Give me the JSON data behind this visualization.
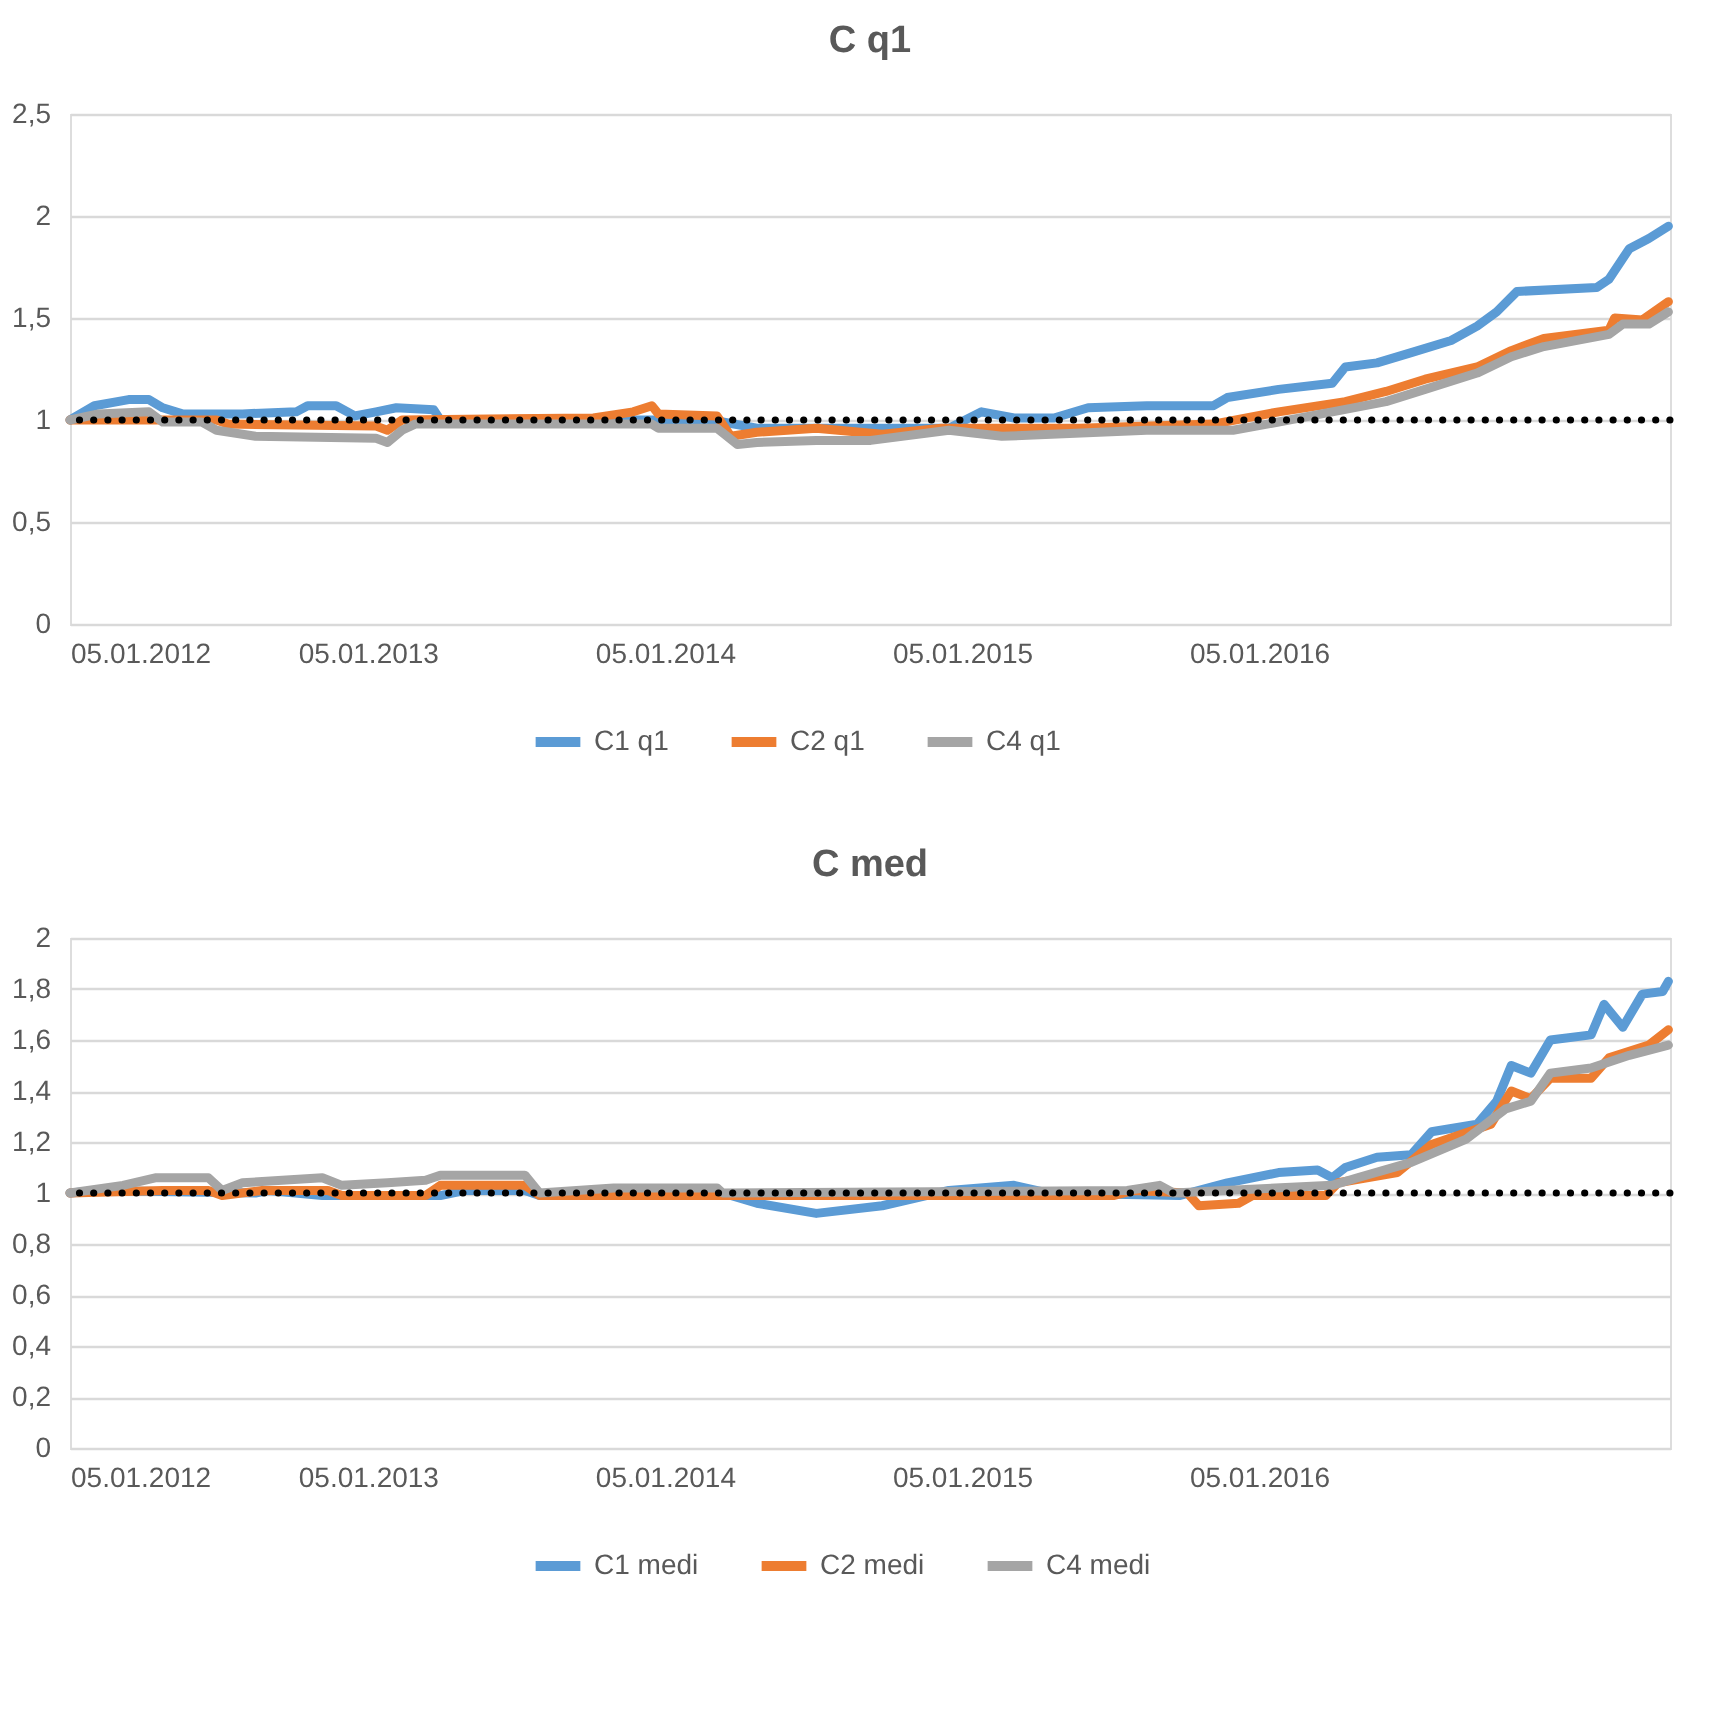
{
  "chart_data": [
    {
      "type": "line",
      "title": "C q1",
      "xlim": [
        "2012-01-05",
        "2017-05-24"
      ],
      "ylim": [
        0,
        2.5
      ],
      "xticks": [
        {
          "value": "2012-01-05",
          "label": "05.01.2012"
        },
        {
          "value": "2013-01-05",
          "label": "05.01.2013"
        },
        {
          "value": "2014-01-05",
          "label": "05.01.2014"
        },
        {
          "value": "2015-01-05",
          "label": "05.01.2015"
        },
        {
          "value": "2016-01-05",
          "label": "05.01.2016"
        }
      ],
      "yticks": [
        0,
        {
          "value": 0.5,
          "label": "0,5"
        },
        1,
        {
          "value": 1.5,
          "label": "1,5"
        },
        2,
        {
          "value": 2.5,
          "label": "2,5"
        }
      ],
      "grid": "y",
      "legend": "bottom",
      "line_style": "solid",
      "marker": "none",
      "ref_lines": [
        {
          "axis": "y",
          "value": 1,
          "label": null,
          "color": "#000000",
          "line_style": "dotted"
        }
      ],
      "series": [
        {
          "name": "C1 q1",
          "color": "#5b9bd5",
          "x": [
            "2012-01-05",
            "2012-02-04",
            "2012-03-17",
            "2012-04-11",
            "2012-04-28",
            "2012-05-22",
            "2012-08-04",
            "2012-10-09",
            "2012-10-23",
            "2012-11-27",
            "2012-12-20",
            "2013-01-15",
            "2013-02-09",
            "2013-03-27",
            "2013-04-04",
            "2013-12-28",
            "2014-03-17",
            "2014-04-28",
            "2014-07-10",
            "2014-12-20",
            "2015-01-29",
            "2015-03-10",
            "2015-04-28",
            "2015-06-09",
            "2015-08-20",
            "2015-11-10",
            "2015-11-27",
            "2016-01-29",
            "2016-04-04",
            "2016-04-20",
            "2016-05-29",
            "2016-07-10",
            "2016-08-28",
            "2016-09-29",
            "2016-10-23",
            "2016-11-17",
            "2017-02-23",
            "2017-03-10",
            "2017-04-04",
            "2017-04-28",
            "2017-05-22"
          ],
          "values": [
            1.0,
            1.07,
            1.1,
            1.1,
            1.06,
            1.03,
            1.03,
            1.04,
            1.07,
            1.07,
            1.02,
            1.04,
            1.06,
            1.05,
            1.0,
            1.0,
            0.99,
            0.96,
            0.96,
            0.96,
            1.04,
            1.01,
            1.01,
            1.06,
            1.07,
            1.07,
            1.11,
            1.15,
            1.18,
            1.26,
            1.28,
            1.33,
            1.39,
            1.46,
            1.53,
            1.63,
            1.65,
            1.69,
            1.84,
            1.89,
            1.95
          ]
        },
        {
          "name": "C2 q1",
          "color": "#ed7d31",
          "x": [
            "2012-01-05",
            "2012-07-03",
            "2012-07-17",
            "2013-01-15",
            "2013-01-29",
            "2013-02-16",
            "2013-10-09",
            "2013-11-27",
            "2013-12-20",
            "2013-12-28",
            "2014-03-10",
            "2014-03-27",
            "2014-04-28",
            "2014-07-10",
            "2014-09-29",
            "2014-12-11",
            "2015-05-29",
            "2015-11-10",
            "2016-01-29",
            "2016-04-20",
            "2016-06-09",
            "2016-07-27",
            "2016-09-29",
            "2016-11-10",
            "2016-12-20",
            "2017-03-10",
            "2017-03-17",
            "2017-04-20",
            "2017-05-22"
          ],
          "values": [
            1.0,
            1.0,
            0.98,
            0.97,
            0.95,
            1.0,
            1.01,
            1.04,
            1.07,
            1.03,
            1.02,
            0.92,
            0.94,
            0.96,
            0.93,
            0.96,
            0.96,
            0.98,
            1.04,
            1.09,
            1.14,
            1.2,
            1.26,
            1.34,
            1.4,
            1.44,
            1.5,
            1.49,
            1.58
          ]
        },
        {
          "name": "C4 q1",
          "color": "#a5a5a5",
          "x": [
            "2012-01-05",
            "2012-02-09",
            "2012-04-11",
            "2012-04-28",
            "2012-06-15",
            "2012-07-03",
            "2012-08-20",
            "2013-01-15",
            "2013-01-29",
            "2013-02-16",
            "2013-03-04",
            "2013-12-20",
            "2013-12-28",
            "2014-03-10",
            "2014-04-04",
            "2014-04-28",
            "2014-07-10",
            "2014-09-15",
            "2014-12-20",
            "2015-02-23",
            "2015-08-20",
            "2015-12-04",
            "2016-01-29",
            "2016-04-04",
            "2016-06-09",
            "2016-07-27",
            "2016-09-29",
            "2016-11-10",
            "2016-12-20",
            "2017-03-10",
            "2017-03-27",
            "2017-04-28",
            "2017-05-22"
          ],
          "values": [
            1.0,
            1.03,
            1.04,
            0.99,
            0.99,
            0.95,
            0.92,
            0.91,
            0.89,
            0.95,
            0.98,
            0.98,
            0.96,
            0.96,
            0.88,
            0.89,
            0.9,
            0.9,
            0.95,
            0.92,
            0.95,
            0.95,
            0.99,
            1.04,
            1.09,
            1.15,
            1.23,
            1.31,
            1.36,
            1.42,
            1.47,
            1.47,
            1.53
          ]
        }
      ]
    },
    {
      "type": "line",
      "title": "C med",
      "xlim": [
        "2012-01-05",
        "2017-05-24"
      ],
      "ylim": [
        0,
        2
      ],
      "xticks": [
        {
          "value": "2012-01-05",
          "label": "05.01.2012"
        },
        {
          "value": "2013-01-05",
          "label": "05.01.2013"
        },
        {
          "value": "2014-01-05",
          "label": "05.01.2014"
        },
        {
          "value": "2015-01-05",
          "label": "05.01.2015"
        },
        {
          "value": "2016-01-05",
          "label": "05.01.2016"
        }
      ],
      "yticks": [
        0,
        {
          "value": 0.2,
          "label": "0,2"
        },
        {
          "value": 0.4,
          "label": "0,4"
        },
        {
          "value": 0.6,
          "label": "0,6"
        },
        {
          "value": 0.8,
          "label": "0,8"
        },
        1,
        {
          "value": 1.2,
          "label": "1,2"
        },
        {
          "value": 1.4,
          "label": "1,4"
        },
        {
          "value": 1.6,
          "label": "1,6"
        },
        {
          "value": 1.8,
          "label": "1,8"
        },
        2
      ],
      "grid": "y",
      "legend": "bottom",
      "line_style": "solid",
      "marker": "none",
      "ref_lines": [
        {
          "axis": "y",
          "value": 1,
          "label": null,
          "color": "#000000",
          "line_style": "dotted"
        }
      ],
      "series": [
        {
          "name": "C1 medi",
          "color": "#5b9bd5",
          "x": [
            "2012-01-05",
            "2012-02-09",
            "2012-08-20",
            "2012-09-05",
            "2012-11-10",
            "2013-04-04",
            "2013-05-05",
            "2013-07-17",
            "2013-08-04",
            "2014-03-10",
            "2014-03-27",
            "2014-04-28",
            "2014-07-10",
            "2014-09-29",
            "2014-12-20",
            "2015-03-10",
            "2015-04-20",
            "2015-09-29",
            "2015-11-27",
            "2016-01-29",
            "2016-03-17",
            "2016-04-04",
            "2016-04-20",
            "2016-05-29",
            "2016-07-10",
            "2016-08-04",
            "2016-09-29",
            "2016-10-23",
            "2016-11-10",
            "2016-12-04",
            "2016-12-28",
            "2017-02-16",
            "2017-03-04",
            "2017-03-27",
            "2017-04-20",
            "2017-05-15",
            "2017-05-22"
          ],
          "values": [
            1.0,
            1.01,
            1.0,
            1.01,
            0.99,
            0.99,
            1.01,
            1.01,
            0.99,
            1.0,
            0.99,
            0.96,
            0.92,
            0.95,
            1.01,
            1.03,
            1.0,
            0.99,
            1.04,
            1.08,
            1.09,
            1.06,
            1.1,
            1.14,
            1.15,
            1.24,
            1.27,
            1.36,
            1.5,
            1.47,
            1.6,
            1.62,
            1.74,
            1.65,
            1.78,
            1.79,
            1.83
          ]
        },
        {
          "name": "C2 medi",
          "color": "#ed7d31",
          "x": [
            "2012-01-05",
            "2012-04-28",
            "2012-06-23",
            "2012-07-10",
            "2012-08-28",
            "2012-11-17",
            "2012-12-04",
            "2013-03-17",
            "2013-04-04",
            "2013-07-17",
            "2013-08-04",
            "2015-07-10",
            "2015-08-04",
            "2015-10-09",
            "2015-10-23",
            "2015-12-11",
            "2015-12-28",
            "2016-03-27",
            "2016-04-11",
            "2016-06-23",
            "2016-08-04",
            "2016-10-16",
            "2016-11-10",
            "2016-12-04",
            "2016-12-28",
            "2017-02-16",
            "2017-03-10",
            "2017-04-28",
            "2017-05-22"
          ],
          "values": [
            1.0,
            1.01,
            1.01,
            0.99,
            1.01,
            1.01,
            0.99,
            0.99,
            1.03,
            1.03,
            0.99,
            0.99,
            1.01,
            1.0,
            0.95,
            0.96,
            0.99,
            0.99,
            1.04,
            1.08,
            1.19,
            1.27,
            1.4,
            1.37,
            1.45,
            1.45,
            1.53,
            1.58,
            1.64
          ]
        },
        {
          "name": "C4 medi",
          "color": "#a5a5a5",
          "x": [
            "2012-01-05",
            "2012-03-10",
            "2012-04-20",
            "2012-06-23",
            "2012-07-10",
            "2012-08-04",
            "2012-11-10",
            "2012-12-04",
            "2013-01-29",
            "2013-03-17",
            "2013-04-04",
            "2013-07-17",
            "2013-08-04",
            "2013-11-03",
            "2014-03-10",
            "2014-03-17",
            "2015-07-27",
            "2015-09-05",
            "2015-09-22",
            "2016-04-04",
            "2016-05-05",
            "2016-07-10",
            "2016-09-15",
            "2016-11-03",
            "2016-12-04",
            "2016-12-28",
            "2017-02-16",
            "2017-04-04",
            "2017-05-22"
          ],
          "values": [
            1.0,
            1.03,
            1.06,
            1.06,
            1.01,
            1.04,
            1.06,
            1.03,
            1.04,
            1.05,
            1.07,
            1.07,
            1.0,
            1.02,
            1.02,
            1.0,
            1.01,
            1.03,
            1.0,
            1.03,
            1.06,
            1.12,
            1.21,
            1.33,
            1.36,
            1.47,
            1.49,
            1.54,
            1.58
          ]
        }
      ]
    }
  ]
}
